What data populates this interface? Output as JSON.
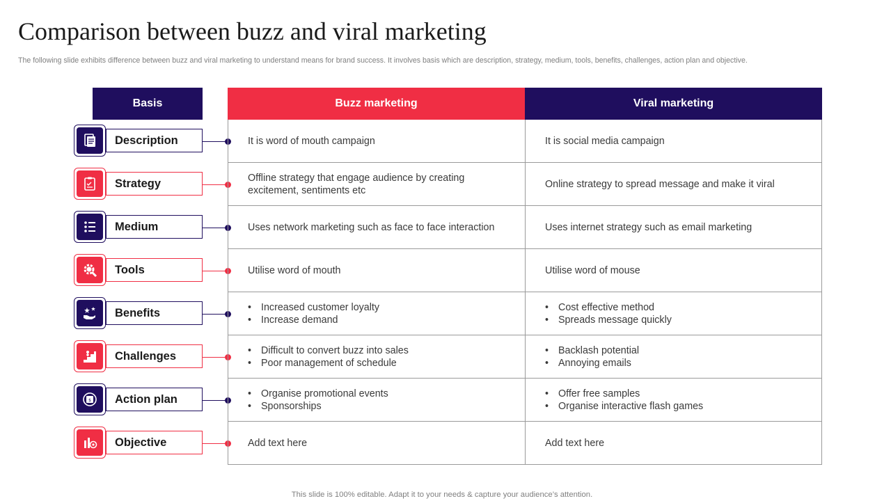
{
  "title": "Comparison between buzz and viral marketing",
  "subtitle": "The following slide exhibits difference between buzz and viral marketing to understand means for brand success. It involves basis which are description, strategy, medium, tools, benefits, challenges, action plan and objective.",
  "headers": {
    "basis": "Basis",
    "buzz": "Buzz marketing",
    "viral": "Viral marketing"
  },
  "colors": {
    "navy": "#1f0e5e",
    "red": "#f02e44"
  },
  "rows": [
    {
      "basis": "Description",
      "icon": "document-icon",
      "buzz": [
        "It is word of mouth campaign"
      ],
      "viral": [
        "It is social media campaign"
      ],
      "buzz_bullets": false,
      "viral_bullets": false
    },
    {
      "basis": "Strategy",
      "icon": "clipboard-icon",
      "buzz": [
        "Offline strategy that engage audience by creating excitement, sentiments etc"
      ],
      "viral": [
        "Online strategy to spread message and make it viral"
      ],
      "buzz_bullets": false,
      "viral_bullets": false
    },
    {
      "basis": "Medium",
      "icon": "list-icon",
      "buzz": [
        "Uses network marketing such as face to face interaction"
      ],
      "viral": [
        "Uses internet strategy such as email marketing"
      ],
      "buzz_bullets": false,
      "viral_bullets": false
    },
    {
      "basis": "Tools",
      "icon": "gear-search-icon",
      "buzz": [
        "Utilise word of mouth"
      ],
      "viral": [
        "Utilise word of mouse"
      ],
      "buzz_bullets": false,
      "viral_bullets": false
    },
    {
      "basis": "Benefits",
      "icon": "hand-stars-icon",
      "buzz": [
        "Increased customer loyalty",
        "Increase demand"
      ],
      "viral": [
        "Cost effective method",
        "Spreads message quickly"
      ],
      "buzz_bullets": true,
      "viral_bullets": true
    },
    {
      "basis": "Challenges",
      "icon": "stairs-climb-icon",
      "buzz": [
        "Difficult to convert buzz into sales",
        "Poor management of schedule"
      ],
      "viral": [
        "Backlash potential",
        "Annoying emails"
      ],
      "buzz_bullets": true,
      "viral_bullets": true
    },
    {
      "basis": "Action plan",
      "icon": "planning-icon",
      "buzz": [
        "Organise promotional events",
        "Sponsorships"
      ],
      "viral": [
        "Offer free samples",
        "Organise interactive flash games"
      ],
      "buzz_bullets": true,
      "viral_bullets": true
    },
    {
      "basis": "Objective",
      "icon": "target-chart-icon",
      "buzz": [
        "Add text here"
      ],
      "viral": [
        "Add text here"
      ],
      "buzz_bullets": false,
      "viral_bullets": false
    }
  ],
  "footer": "This slide is 100% editable. Adapt it to your needs & capture your audience’s attention."
}
